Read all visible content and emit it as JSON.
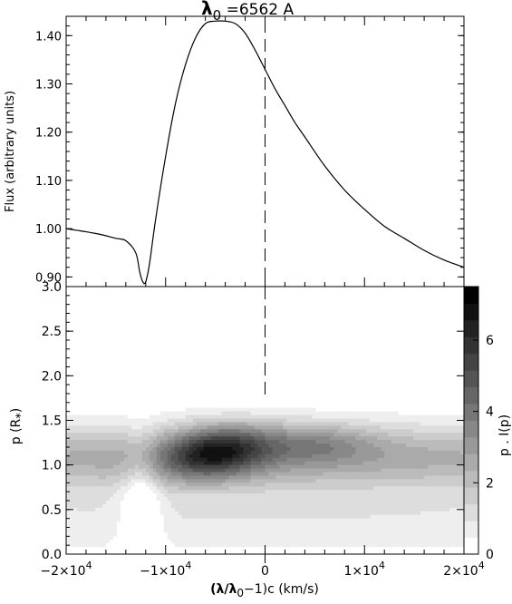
{
  "title": {
    "lambda": "λ",
    "sub": "0",
    "rest": " =6562 A"
  },
  "chart_data": [
    {
      "type": "line",
      "title": "λ0 =6562 A",
      "ylabel": "Flux (arbitrary units)",
      "xlim": [
        -20000,
        20000
      ],
      "ylim": [
        0.88,
        1.44
      ],
      "yticks": [
        "0.90",
        "1.00",
        "1.10",
        "1.20",
        "1.30",
        "1.40"
      ],
      "ytick_values": [
        0.9,
        1.0,
        1.1,
        1.2,
        1.3,
        1.4
      ],
      "reference_line_x": 0,
      "x": [
        -20000,
        -17000,
        -15000,
        -14000,
        -13000,
        -12600,
        -12300,
        -12000,
        -11600,
        -11000,
        -10000,
        -9000,
        -8000,
        -7000,
        -6000,
        -5000,
        -4000,
        -3000,
        -2000,
        -1000,
        0,
        1000,
        2000,
        3000,
        4000,
        6000,
        8000,
        10000,
        12000,
        14000,
        16000,
        18000,
        20000
      ],
      "y": [
        1.0,
        0.99,
        0.98,
        0.975,
        0.95,
        0.91,
        0.89,
        0.89,
        0.93,
        1.02,
        1.15,
        1.26,
        1.34,
        1.395,
        1.425,
        1.43,
        1.43,
        1.425,
        1.405,
        1.37,
        1.33,
        1.29,
        1.255,
        1.22,
        1.19,
        1.13,
        1.08,
        1.04,
        1.005,
        0.98,
        0.955,
        0.935,
        0.92
      ]
    },
    {
      "type": "heatmap",
      "xlabel": {
        "pre": "(λ/λ",
        "sub": "0",
        "post": "−1)c (km/s)"
      },
      "ylabel": {
        "pre": "p (R",
        "sub": "*",
        "post": ")"
      },
      "colorbar_label": "p . I(p)",
      "xlim": [
        -20000,
        20000
      ],
      "ylim": [
        0,
        3.0
      ],
      "xtick_values": [
        -20000,
        -10000,
        0,
        10000,
        20000
      ],
      "xticks": [
        {
          "mant": "−2×10",
          "exp": "4"
        },
        {
          "mant": "−1×10",
          "exp": "4"
        },
        {
          "mant": "0",
          "exp": ""
        },
        {
          "mant": "1×10",
          "exp": "4"
        },
        {
          "mant": "2×10",
          "exp": "4"
        }
      ],
      "yticks": [
        "0.0",
        "0.5",
        "1.0",
        "1.5",
        "2.0",
        "2.5",
        "3.0"
      ],
      "ytick_values": [
        0,
        0.5,
        1.0,
        1.5,
        2.0,
        2.5,
        3.0
      ],
      "colorbar_ticks": [
        "0",
        "2",
        "4",
        "6"
      ],
      "colorbar_tick_values": [
        0,
        2,
        4,
        6
      ],
      "colorbar_range": [
        0,
        7.5
      ],
      "extent_p": 1.75,
      "peak_value": 7.4,
      "peak_x": -5000,
      "peak_p": 1.15,
      "absorption_x": -12500,
      "colormap": [
        "#ffffff",
        "#000000"
      ]
    }
  ]
}
